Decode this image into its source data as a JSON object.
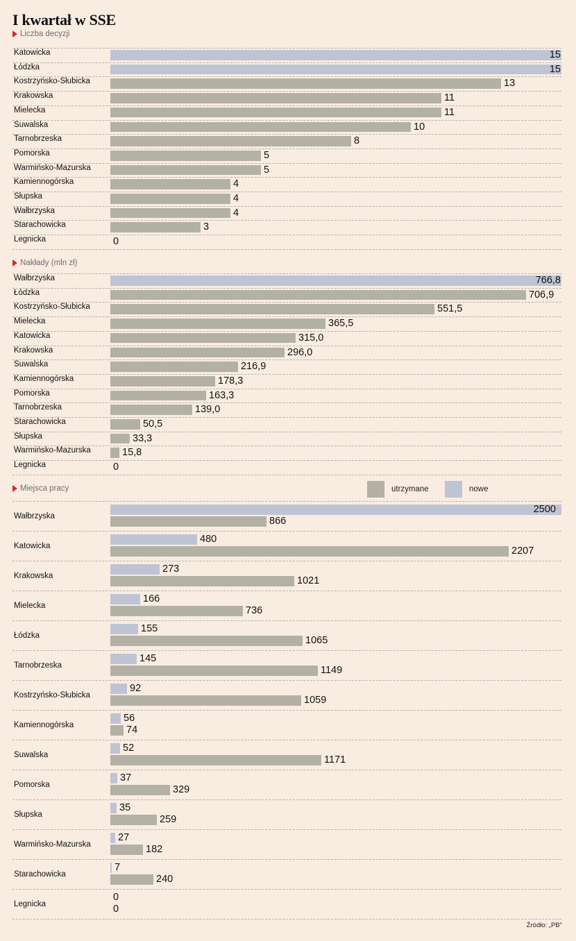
{
  "title": "I kwartał w SSE",
  "source": "Źródło: „PB\"",
  "colors": {
    "background": "#f9ece1",
    "primary_bar": "#b3b1a5",
    "highlight_bar": "#bfc4d5",
    "marker": "#d7282f"
  },
  "legend": {
    "retained_label": "utrzymane",
    "new_label": "nowe"
  },
  "chart_data": [
    {
      "type": "bar",
      "orientation": "horizontal",
      "title": "Liczba decyzji",
      "categories": [
        "Katowicka",
        "Łódzka",
        "Kostrzyńsko-Słubicka",
        "Krakowska",
        "Mielecka",
        "Suwalska",
        "Tarnobrzeska",
        "Pomorska",
        "Warmińsko-Mazurska",
        "Kamiennogórska",
        "Słupska",
        "Wałbrzyska",
        "Starachowicka",
        "Legnicka"
      ],
      "values": [
        15,
        15,
        13,
        11,
        11,
        10,
        8,
        5,
        5,
        4,
        4,
        4,
        3,
        0
      ],
      "labels": [
        "15",
        "15",
        "13",
        "11",
        "11",
        "10",
        "8",
        "5",
        "5",
        "4",
        "4",
        "4",
        "3",
        "0"
      ],
      "highlight": [
        "Katowicka",
        "Łódzka"
      ],
      "xlim": [
        0,
        15
      ]
    },
    {
      "type": "bar",
      "orientation": "horizontal",
      "title": "Nakłady (mln zł)",
      "categories": [
        "Wałbrzyska",
        "Łódzka",
        "Kostrzyńsko-Słubicka",
        "Mielecka",
        "Katowicka",
        "Krakowska",
        "Suwalska",
        "Kamiennogórska",
        "Pomorska",
        "Tarnobrzeska",
        "Starachowicka",
        "Słupska",
        "Warmińsko-Mazurska",
        "Legnicka"
      ],
      "values": [
        766.8,
        706.9,
        551.5,
        365.5,
        315.0,
        296.0,
        216.9,
        178.3,
        163.3,
        139.0,
        50.5,
        33.3,
        15.8,
        0
      ],
      "labels": [
        "766,8",
        "706,9",
        "551,5",
        "365,5",
        "315,0",
        "296,0",
        "216,9",
        "178,3",
        "163,3",
        "139,0",
        "50,5",
        "33,3",
        "15,8",
        "0"
      ],
      "highlight": [
        "Wałbrzyska"
      ],
      "xlim": [
        0,
        766.8
      ]
    },
    {
      "type": "bar",
      "orientation": "horizontal",
      "title": "Miejsca pracy",
      "categories": [
        "Wałbrzyska",
        "Katowicka",
        "Krakowska",
        "Mielecka",
        "Łódzka",
        "Tarnobrzeska",
        "Kostrzyńsko-Słubicka",
        "Kamiennogórska",
        "Suwalska",
        "Pomorska",
        "Słupska",
        "Warmińsko-Mazurska",
        "Starachowicka",
        "Legnicka"
      ],
      "series": [
        {
          "name": "nowe",
          "values": [
            2500,
            480,
            273,
            166,
            155,
            145,
            92,
            56,
            52,
            37,
            35,
            27,
            7,
            0
          ]
        },
        {
          "name": "utrzymane",
          "values": [
            866,
            2207,
            1021,
            736,
            1065,
            1149,
            1059,
            74,
            1171,
            329,
            259,
            182,
            240,
            0
          ]
        }
      ],
      "xlim": [
        0,
        2500
      ]
    }
  ]
}
